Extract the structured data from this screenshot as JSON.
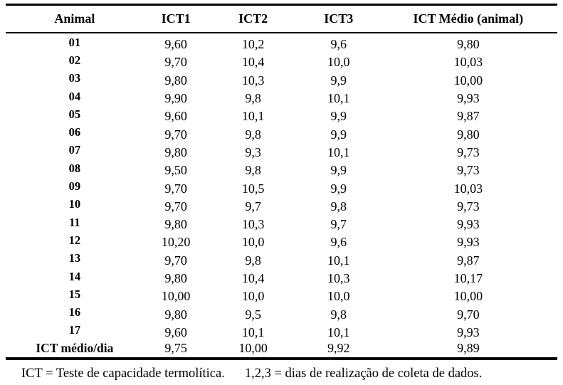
{
  "colors": {
    "background": "#ffffff",
    "text": "#000000",
    "rule": "#000000"
  },
  "header": {
    "columns": [
      "Animal",
      "ICT1",
      "ICT2",
      "ICT3",
      "ICT Médio (animal)"
    ]
  },
  "rows": [
    [
      "01",
      "9,60",
      "10,2",
      "9,6",
      "9,80"
    ],
    [
      "02",
      "9,70",
      "10,4",
      "10,0",
      "10,03"
    ],
    [
      "03",
      "9,80",
      "10,3",
      "9,9",
      "10,00"
    ],
    [
      "04",
      "9,90",
      "9,8",
      "10,1",
      "9,93"
    ],
    [
      "05",
      "9,60",
      "10,1",
      "9,9",
      "9,87"
    ],
    [
      "06",
      "9,70",
      "9,8",
      "9,9",
      "9,80"
    ],
    [
      "07",
      "9,80",
      "9,3",
      "10,1",
      "9,73"
    ],
    [
      "08",
      "9,50",
      "9,8",
      "9,9",
      "9,73"
    ],
    [
      "09",
      "9,70",
      "10,5",
      "9,9",
      "10,03"
    ],
    [
      "10",
      "9,70",
      "9,7",
      "9,8",
      "9,73"
    ],
    [
      "11",
      "9,80",
      "10,3",
      "9,7",
      "9,93"
    ],
    [
      "12",
      "10,20",
      "10,0",
      "9,6",
      "9,93"
    ],
    [
      "13",
      "9,70",
      "9,8",
      "10,1",
      "9,87"
    ],
    [
      "14",
      "9,80",
      "10,4",
      "10,3",
      "10,17"
    ],
    [
      "15",
      "10,00",
      "10,0",
      "10,0",
      "10,00"
    ],
    [
      "16",
      "9,80",
      "9,5",
      "9,8",
      "9,70"
    ],
    [
      "17",
      "9,60",
      "10,1",
      "10,1",
      "9,93"
    ]
  ],
  "summary_row": [
    "ICT médio/dia",
    "9,75",
    "10,00",
    "9,92",
    "9,89"
  ],
  "footnote": {
    "part1": "ICT = Teste de capacidade termolítica.",
    "part2": "1,2,3 = dias de realização de coleta de dados."
  }
}
